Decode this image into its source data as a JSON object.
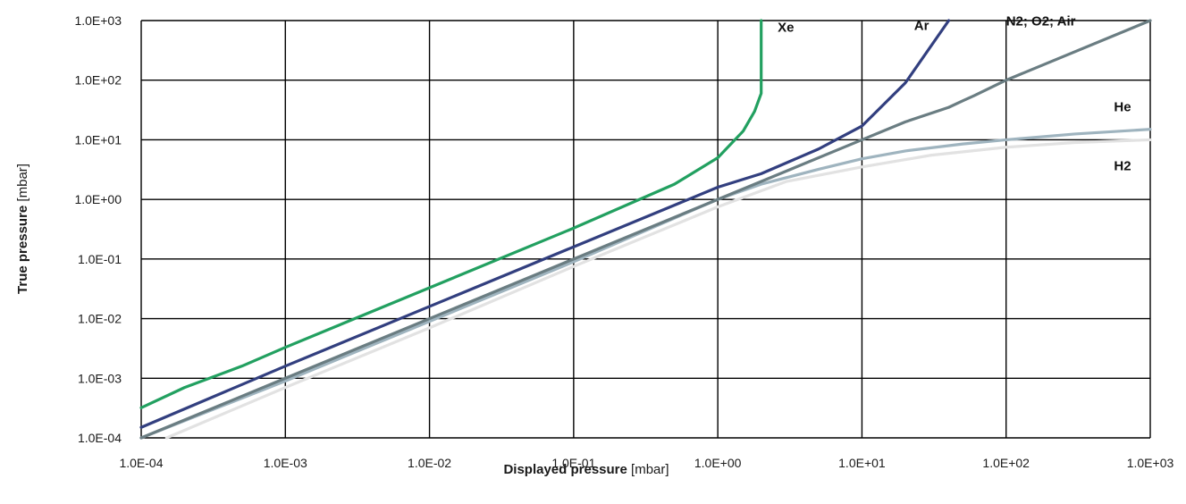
{
  "chart_data": {
    "type": "line",
    "x_scale": "log",
    "y_scale": "log",
    "xlim": [
      0.0001,
      1000
    ],
    "ylim": [
      0.0001,
      1000
    ],
    "grid": true,
    "legend": "none (series labeled inline)",
    "xlabel": {
      "bold": "Displayed pressure",
      "unit": "[mbar]"
    },
    "ylabel": {
      "bold": "True pressure",
      "unit": "[mbar]"
    },
    "x_ticks": [
      {
        "value": 0.0001,
        "label": "1.0E-04"
      },
      {
        "value": 0.001,
        "label": "1.0E-03"
      },
      {
        "value": 0.01,
        "label": "1.0E-02"
      },
      {
        "value": 0.1,
        "label": "1.0E-01"
      },
      {
        "value": 1,
        "label": "1.0E+00"
      },
      {
        "value": 10,
        "label": "1.0E+01"
      },
      {
        "value": 100,
        "label": "1.0E+02"
      },
      {
        "value": 1000,
        "label": "1.0E+03"
      }
    ],
    "y_ticks": [
      {
        "value": 0.0001,
        "label": "1.0E-04"
      },
      {
        "value": 0.001,
        "label": "1.0E-03"
      },
      {
        "value": 0.01,
        "label": "1.0E-02"
      },
      {
        "value": 0.1,
        "label": "1.0E-01"
      },
      {
        "value": 1,
        "label": "1.0E+00"
      },
      {
        "value": 10,
        "label": "1.0E+01"
      },
      {
        "value": 100,
        "label": "1.0E+02"
      },
      {
        "value": 1000,
        "label": "1.0E+03"
      }
    ],
    "series": [
      {
        "name": "H2",
        "color": "#e2e2e2",
        "points": [
          [
            0.00015,
            0.0001
          ],
          [
            0.001,
            0.0007
          ],
          [
            0.01,
            0.007
          ],
          [
            0.1,
            0.075
          ],
          [
            1,
            0.75
          ],
          [
            3,
            2
          ],
          [
            10,
            3.5
          ],
          [
            30,
            5.5
          ],
          [
            100,
            7.5
          ],
          [
            300,
            9
          ],
          [
            1000,
            10
          ]
        ]
      },
      {
        "name": "He",
        "color": "#9fb4bf",
        "points": [
          [
            0.0001,
            0.0001
          ],
          [
            0.001,
            0.0009
          ],
          [
            0.01,
            0.009
          ],
          [
            0.1,
            0.09
          ],
          [
            1,
            1
          ],
          [
            2,
            1.8
          ],
          [
            5,
            3.2
          ],
          [
            10,
            4.8
          ],
          [
            20,
            6.5
          ],
          [
            50,
            8.5
          ],
          [
            100,
            10
          ],
          [
            300,
            12.5
          ],
          [
            1000,
            15
          ]
        ]
      },
      {
        "name": "N2; O2; Air",
        "color": "#6a7d82",
        "points": [
          [
            0.0001,
            0.0001
          ],
          [
            0.001,
            0.001
          ],
          [
            0.01,
            0.01
          ],
          [
            0.1,
            0.1
          ],
          [
            1,
            1
          ],
          [
            10,
            10
          ],
          [
            20,
            20
          ],
          [
            40,
            35
          ],
          [
            50,
            45
          ],
          [
            60,
            55
          ],
          [
            100,
            100
          ],
          [
            1000,
            1000
          ]
        ]
      },
      {
        "name": "Ar",
        "color": "#323f7f",
        "points": [
          [
            0.0001,
            0.00015
          ],
          [
            0.001,
            0.0016
          ],
          [
            0.01,
            0.016
          ],
          [
            0.1,
            0.16
          ],
          [
            1,
            1.6
          ],
          [
            2,
            2.7
          ],
          [
            5,
            7
          ],
          [
            10,
            17
          ],
          [
            20,
            90
          ],
          [
            40,
            1000
          ]
        ]
      },
      {
        "name": "Xe",
        "color": "#22a060",
        "points": [
          [
            0.0001,
            0.00032
          ],
          [
            0.0002,
            0.0007
          ],
          [
            0.0005,
            0.0016
          ],
          [
            0.001,
            0.0033
          ],
          [
            0.01,
            0.033
          ],
          [
            0.1,
            0.33
          ],
          [
            0.5,
            1.8
          ],
          [
            1,
            5
          ],
          [
            1.5,
            14
          ],
          [
            1.8,
            30
          ],
          [
            2,
            60
          ],
          [
            2,
            1000
          ]
        ]
      }
    ],
    "annotations": [
      {
        "text": "Xe",
        "series": "Xe",
        "x": 2.6,
        "y": 650
      },
      {
        "text": "Ar",
        "series": "Ar",
        "x": 23,
        "y": 700
      },
      {
        "text": "N2; O2; Air",
        "series": "N2; O2; Air",
        "x": 100,
        "y": 820
      },
      {
        "text": "He",
        "series": "He",
        "x": 560,
        "y": 30
      },
      {
        "text": "H2",
        "series": "H2",
        "x": 560,
        "y": 3.1
      }
    ]
  }
}
